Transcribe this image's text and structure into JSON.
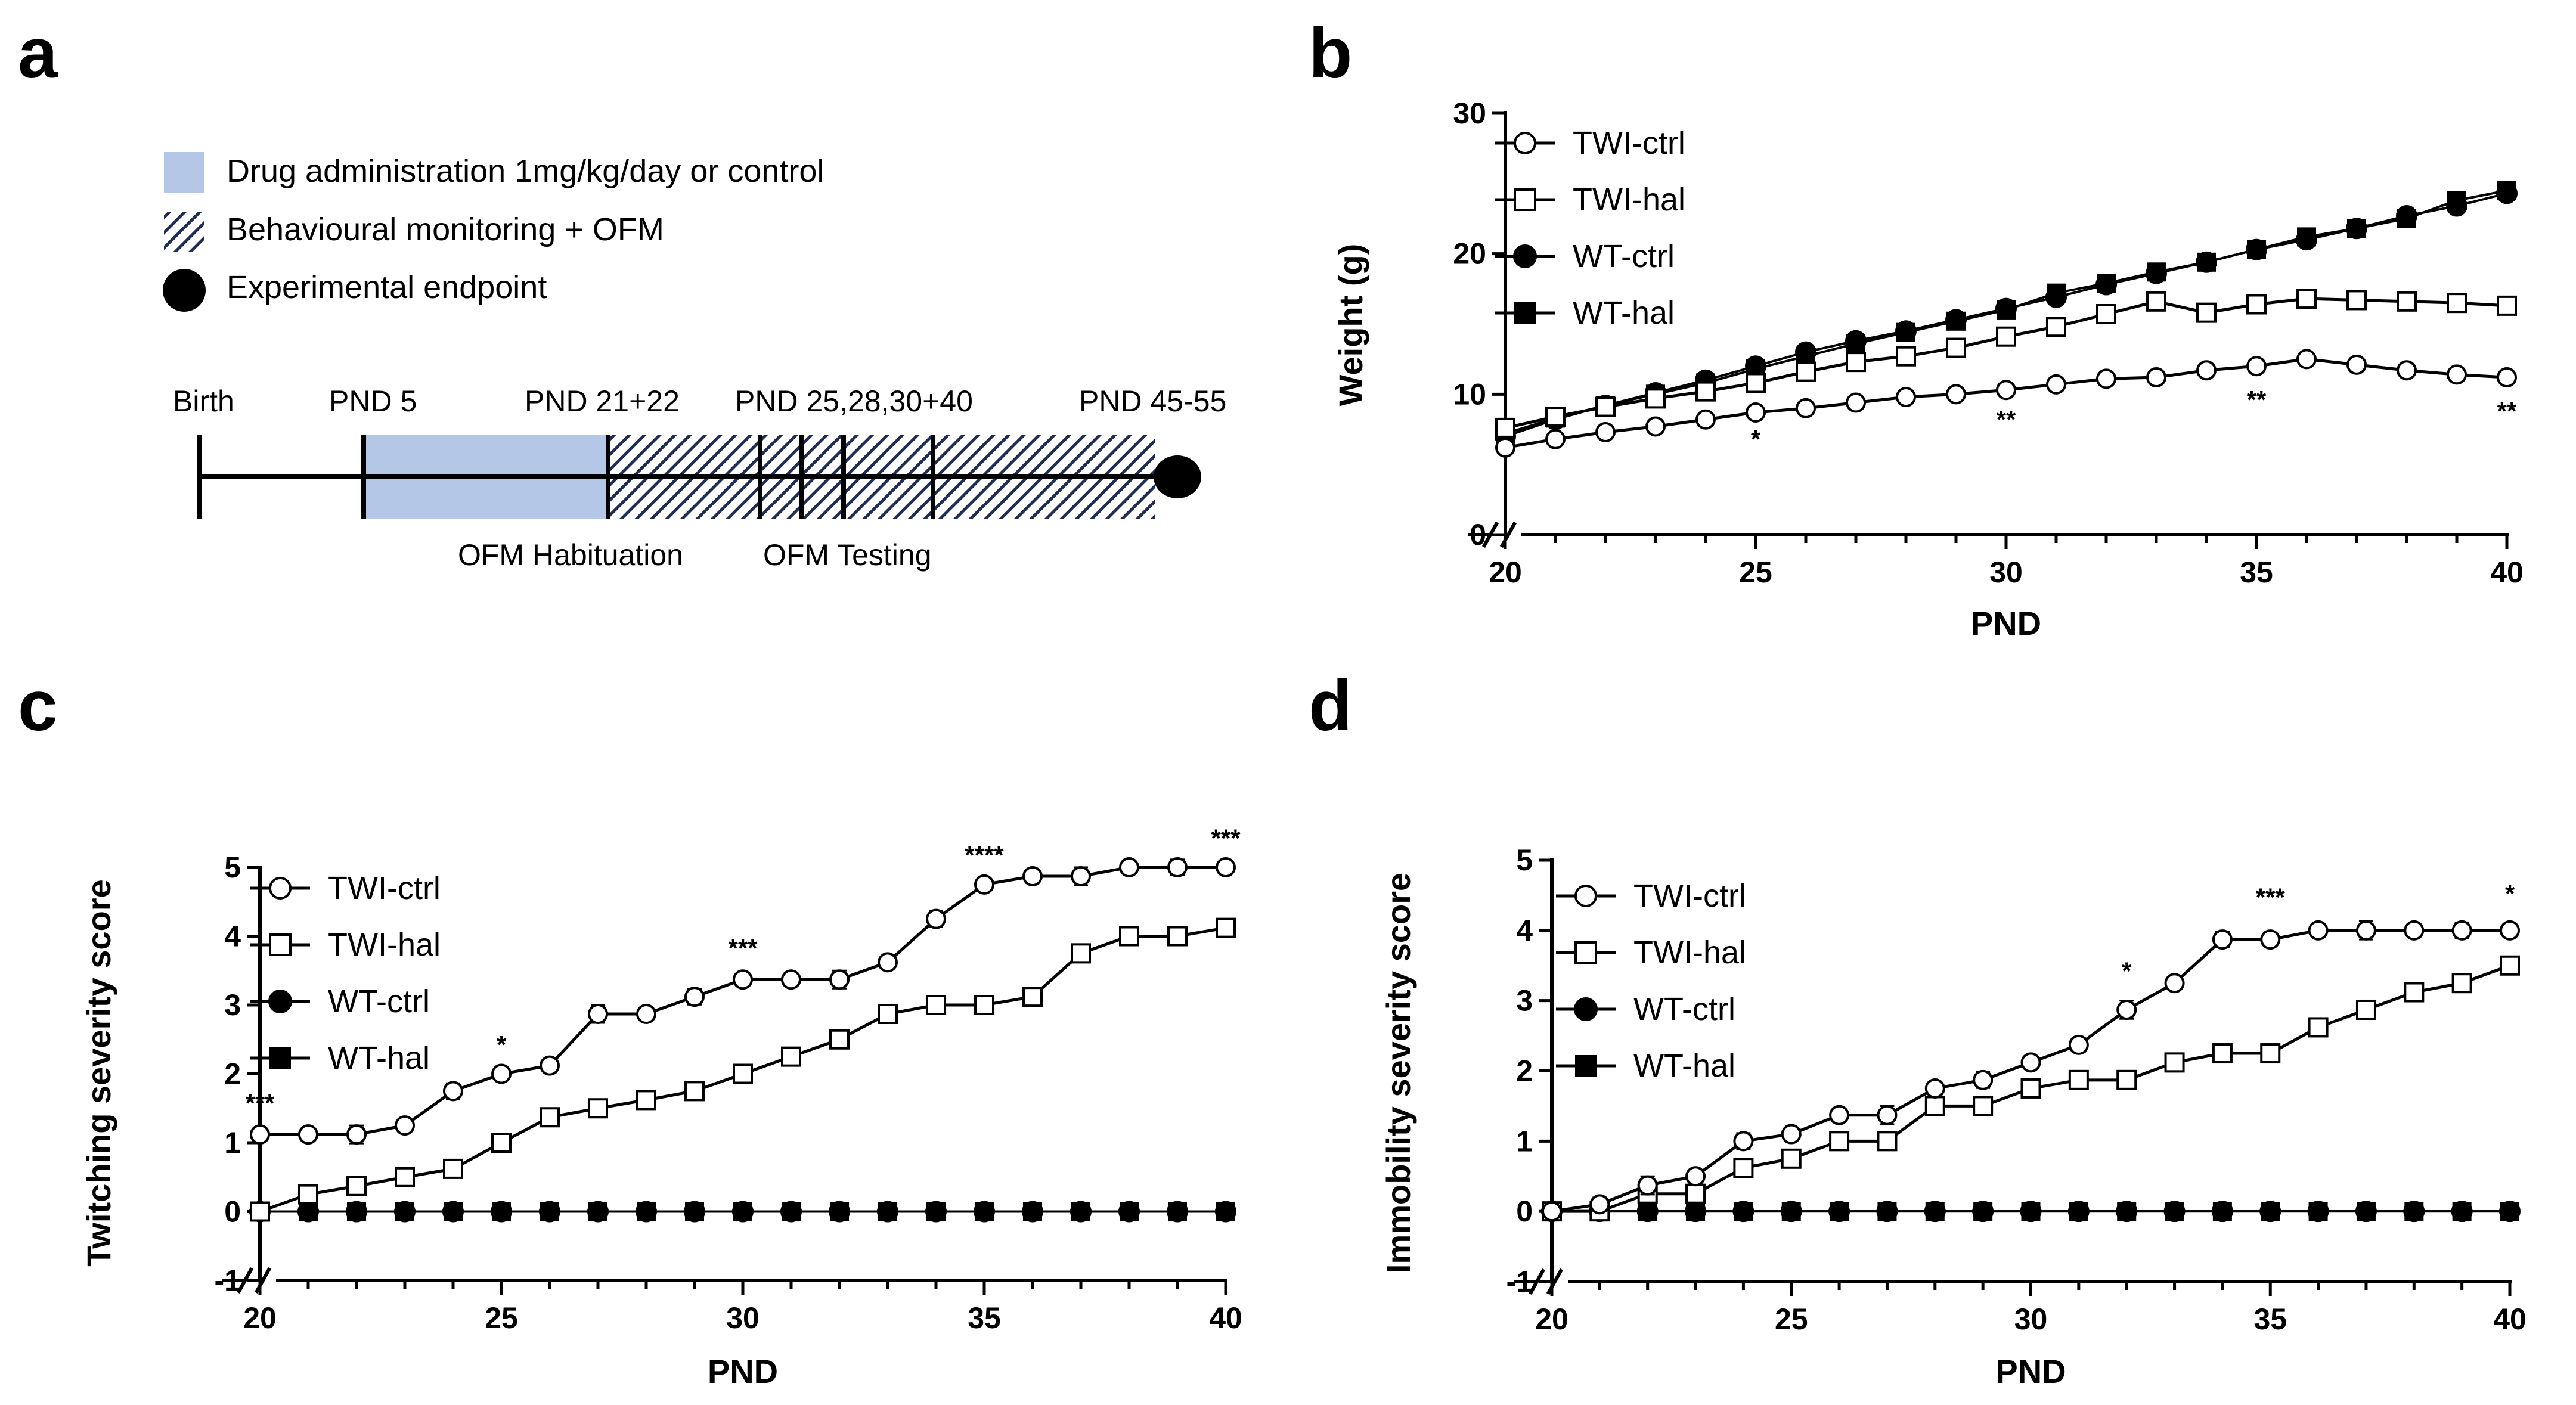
{
  "panel_labels": [
    "a",
    "b",
    "c",
    "d"
  ],
  "timeline": {
    "legend": [
      {
        "label": "Drug administration 1mg/kg/day or control",
        "kind": "drug"
      },
      {
        "label": "Behavioural monitoring + OFM",
        "kind": "hatch"
      },
      {
        "label": "Experimental endpoint",
        "kind": "dot"
      }
    ],
    "top_labels": [
      "Birth",
      "PND 5",
      "PND 21+22",
      "PND 25,28,30+40",
      "PND 45-55"
    ],
    "bottom_labels": [
      "OFM Habituation",
      "OFM Testing"
    ],
    "colors": {
      "drug": "#b4c7e7",
      "hatch": "#1f2d55"
    }
  },
  "chart_data": [
    {
      "panel": "b",
      "type": "line",
      "xlabel": "PND",
      "ylabel": "Weight (g)",
      "xlim": [
        20,
        40
      ],
      "ylim": [
        0,
        30
      ],
      "xticks": [
        20,
        25,
        30,
        35,
        40
      ],
      "yticks": [
        0,
        10,
        20,
        30
      ],
      "legend_position": "top-left",
      "x": [
        20,
        21,
        22,
        23,
        24,
        25,
        26,
        27,
        28,
        29,
        30,
        31,
        32,
        33,
        34,
        35,
        36,
        37,
        38,
        39,
        40
      ],
      "series": [
        {
          "name": "TWI-ctrl",
          "marker": "open-circle",
          "values": [
            6.2,
            6.8,
            7.3,
            7.7,
            8.2,
            8.7,
            9.0,
            9.4,
            9.8,
            10.0,
            10.3,
            10.7,
            11.1,
            11.2,
            11.7,
            12.0,
            12.5,
            12.1,
            11.7,
            11.4,
            11.2
          ]
        },
        {
          "name": "TWI-hal",
          "marker": "open-square",
          "values": [
            7.6,
            8.4,
            9.1,
            9.7,
            10.2,
            10.8,
            11.6,
            12.3,
            12.7,
            13.3,
            14.1,
            14.8,
            15.7,
            16.6,
            15.8,
            16.4,
            16.8,
            16.7,
            16.6,
            16.5,
            16.3
          ]
        },
        {
          "name": "WT-ctrl",
          "marker": "filled-circle",
          "values": [
            7.0,
            8.2,
            9.2,
            10.1,
            11.0,
            12.0,
            13.0,
            13.8,
            14.5,
            15.3,
            16.1,
            16.9,
            17.8,
            18.6,
            19.4,
            20.3,
            21.0,
            21.8,
            22.7,
            23.4,
            24.3
          ]
        },
        {
          "name": "WT-hal",
          "marker": "filled-square",
          "values": [
            7.2,
            8.3,
            9.2,
            10.0,
            10.8,
            11.8,
            12.7,
            13.6,
            14.4,
            15.2,
            16.0,
            17.2,
            17.9,
            18.7,
            19.4,
            20.3,
            21.2,
            21.8,
            22.5,
            23.8,
            24.5
          ]
        }
      ],
      "annotations": [
        {
          "x": 25,
          "y": 6.2,
          "text": "*"
        },
        {
          "x": 30,
          "y": 7.6,
          "text": "**"
        },
        {
          "x": 35,
          "y": 9.0,
          "text": "**"
        },
        {
          "x": 40,
          "y": 8.2,
          "text": "**"
        }
      ]
    },
    {
      "panel": "c",
      "type": "line",
      "xlabel": "PND",
      "ylabel": "Twitching severity score",
      "xlim": [
        20,
        40
      ],
      "ylim": [
        -1,
        5
      ],
      "xticks": [
        20,
        25,
        30,
        35,
        40
      ],
      "yticks": [
        -1,
        0,
        1,
        2,
        3,
        4,
        5
      ],
      "legend_position": "top-left",
      "x": [
        20,
        21,
        22,
        23,
        24,
        25,
        26,
        27,
        28,
        29,
        30,
        31,
        32,
        33,
        34,
        35,
        36,
        37,
        38,
        39,
        40
      ],
      "series": [
        {
          "name": "TWI-ctrl",
          "marker": "open-circle",
          "values": [
            1.12,
            1.12,
            1.12,
            1.25,
            1.75,
            2.0,
            2.12,
            2.87,
            2.87,
            3.12,
            3.37,
            3.37,
            3.37,
            3.62,
            4.25,
            4.75,
            4.87,
            4.87,
            5.0,
            5.0,
            5.0
          ]
        },
        {
          "name": "TWI-hal",
          "marker": "open-square",
          "values": [
            0.0,
            0.25,
            0.37,
            0.5,
            0.62,
            1.0,
            1.37,
            1.5,
            1.62,
            1.75,
            2.0,
            2.25,
            2.5,
            2.87,
            3.0,
            3.0,
            3.12,
            3.75,
            4.0,
            4.0,
            4.12
          ]
        },
        {
          "name": "WT-ctrl",
          "marker": "filled-circle",
          "values": [
            0,
            0,
            0,
            0,
            0,
            0,
            0,
            0,
            0,
            0,
            0,
            0,
            0,
            0,
            0,
            0,
            0,
            0,
            0,
            0,
            0
          ]
        },
        {
          "name": "WT-hal",
          "marker": "filled-square",
          "values": [
            0,
            0,
            0,
            0,
            0,
            0,
            0,
            0,
            0,
            0,
            0,
            0,
            0,
            0,
            0,
            0,
            0,
            0,
            0,
            0,
            0
          ]
        }
      ],
      "annotations": [
        {
          "x": 20,
          "y": 1.45,
          "text": "***"
        },
        {
          "x": 25,
          "y": 2.3,
          "text": "*"
        },
        {
          "x": 30,
          "y": 3.7,
          "text": "***"
        },
        {
          "x": 35,
          "y": 5.05,
          "text": "****"
        },
        {
          "x": 40,
          "y": 5.3,
          "text": "***"
        }
      ]
    },
    {
      "panel": "d",
      "type": "line",
      "xlabel": "PND",
      "ylabel": "Immobility severity score",
      "xlim": [
        20,
        40
      ],
      "ylim": [
        -1,
        5
      ],
      "xticks": [
        20,
        25,
        30,
        35,
        40
      ],
      "yticks": [
        -1,
        0,
        1,
        2,
        3,
        4,
        5
      ],
      "legend_position": "top-left",
      "x": [
        20,
        21,
        22,
        23,
        24,
        25,
        26,
        27,
        28,
        29,
        30,
        31,
        32,
        33,
        34,
        35,
        36,
        37,
        38,
        39,
        40
      ],
      "series": [
        {
          "name": "TWI-ctrl",
          "marker": "open-circle",
          "values": [
            0.0,
            0.1,
            0.37,
            0.5,
            1.0,
            1.1,
            1.37,
            1.37,
            1.75,
            1.87,
            2.12,
            2.37,
            2.87,
            3.25,
            3.87,
            3.87,
            4.0,
            4.0,
            4.0,
            4.0,
            4.0
          ]
        },
        {
          "name": "TWI-hal",
          "marker": "open-square",
          "values": [
            0.0,
            0.0,
            0.25,
            0.25,
            0.62,
            0.75,
            1.0,
            1.0,
            1.5,
            1.5,
            1.75,
            1.87,
            1.87,
            2.12,
            2.25,
            2.25,
            2.62,
            2.87,
            3.12,
            3.25,
            3.5
          ]
        },
        {
          "name": "WT-ctrl",
          "marker": "filled-circle",
          "values": [
            0,
            0,
            0,
            0,
            0,
            0,
            0,
            0,
            0,
            0,
            0,
            0,
            0,
            0,
            0,
            0,
            0,
            0,
            0,
            0,
            0
          ]
        },
        {
          "name": "WT-hal",
          "marker": "filled-square",
          "values": [
            0,
            0,
            0,
            0,
            0,
            0,
            0,
            0,
            0,
            0,
            0,
            0,
            0,
            0,
            0,
            0,
            0,
            0,
            0,
            0,
            0
          ]
        }
      ],
      "annotations": [
        {
          "x": 32,
          "y": 3.3,
          "text": "*"
        },
        {
          "x": 35,
          "y": 4.35,
          "text": "***"
        },
        {
          "x": 40,
          "y": 4.4,
          "text": "*"
        }
      ]
    }
  ]
}
